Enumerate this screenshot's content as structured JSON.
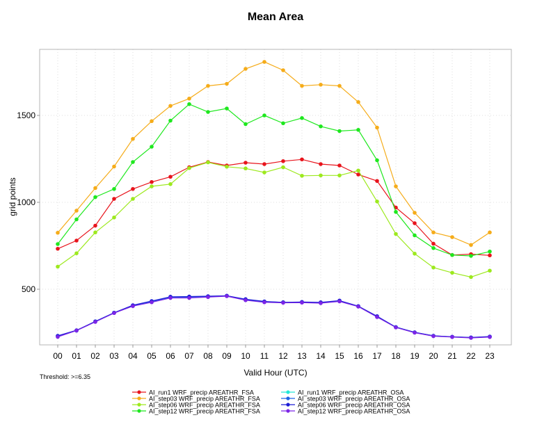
{
  "chart_data": {
    "type": "line",
    "title": "Mean Area",
    "xlabel": "Valid Hour (UTC)",
    "ylabel": "grid points",
    "note": "Threshold: >=6.35",
    "categories": [
      "00",
      "01",
      "02",
      "03",
      "04",
      "05",
      "06",
      "07",
      "08",
      "09",
      "10",
      "11",
      "12",
      "13",
      "14",
      "15",
      "16",
      "17",
      "18",
      "19",
      "20",
      "21",
      "22",
      "23"
    ],
    "ylim": [
      180,
      1880
    ],
    "yticks": [
      500,
      1000,
      1500
    ],
    "grid": true,
    "legend_position": "bottom",
    "series": [
      {
        "name": "AI_run1 WRF_precip AREATHR_FSA",
        "color": "#e8141c",
        "values": [
          733,
          780,
          866,
          1020,
          1077,
          1117,
          1147,
          1202,
          1232,
          1212,
          1228,
          1220,
          1237,
          1247,
          1220,
          1212,
          1160,
          1123,
          970,
          880,
          762,
          697,
          702,
          695
        ]
      },
      {
        "name": "AI_step03 WRF_precip AREATHR_FSA",
        "color": "#f5ac1a",
        "values": [
          825,
          952,
          1082,
          1206,
          1365,
          1467,
          1555,
          1597,
          1670,
          1682,
          1768,
          1808,
          1760,
          1670,
          1677,
          1670,
          1577,
          1430,
          1092,
          940,
          827,
          800,
          755,
          827
        ]
      },
      {
        "name": "AI_step06 WRF_precip AREATHR_FSA",
        "color": "#9de91e",
        "values": [
          630,
          707,
          827,
          913,
          1020,
          1092,
          1105,
          1197,
          1230,
          1205,
          1195,
          1172,
          1202,
          1153,
          1155,
          1155,
          1183,
          1005,
          818,
          705,
          625,
          595,
          570,
          607
        ]
      },
      {
        "name": "AI_step12 WRF_precip AREATHR_FSA",
        "color": "#1ee81e",
        "values": [
          760,
          902,
          1030,
          1077,
          1232,
          1320,
          1470,
          1565,
          1520,
          1540,
          1450,
          1500,
          1455,
          1485,
          1437,
          1410,
          1417,
          1242,
          945,
          810,
          737,
          697,
          692,
          717
        ]
      },
      {
        "name": "AI_run1 WRF_precip AREATHR_OSA",
        "color": "#25e8d8",
        "values": [
          230,
          262,
          315,
          365,
          405,
          427,
          455,
          455,
          458,
          462,
          440,
          428,
          425,
          425,
          422,
          433,
          402,
          343,
          282,
          252,
          232,
          226,
          222,
          227
        ]
      },
      {
        "name": "AI_step03 WRF_precip AREATHR_OSA",
        "color": "#1f64e6",
        "values": [
          230,
          262,
          315,
          365,
          407,
          430,
          455,
          455,
          458,
          462,
          440,
          428,
          425,
          425,
          422,
          433,
          402,
          343,
          282,
          252,
          232,
          226,
          222,
          227
        ]
      },
      {
        "name": "AI_step06 WRF_precip AREATHR_OSA",
        "color": "#1c1cd6",
        "values": [
          232,
          264,
          315,
          365,
          408,
          432,
          457,
          458,
          460,
          463,
          443,
          430,
          425,
          427,
          425,
          435,
          403,
          345,
          282,
          252,
          232,
          227,
          223,
          228
        ]
      },
      {
        "name": "AI_step12 WRF_precip AREATHR_OSA",
        "color": "#7c25e6",
        "values": [
          226,
          262,
          312,
          363,
          403,
          425,
          450,
          450,
          455,
          460,
          437,
          425,
          422,
          423,
          420,
          430,
          400,
          340,
          280,
          250,
          230,
          225,
          220,
          225
        ]
      }
    ]
  }
}
